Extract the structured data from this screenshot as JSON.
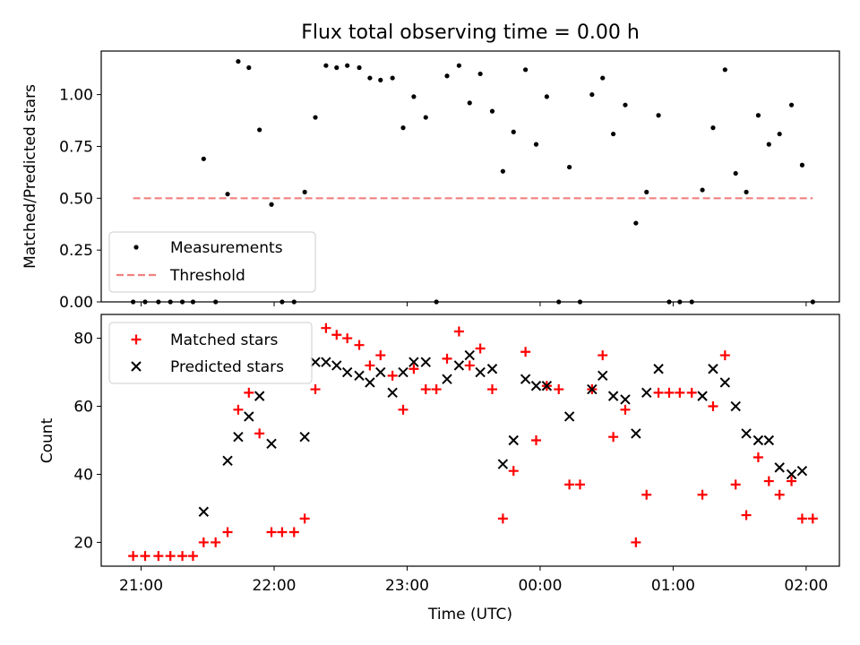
{
  "chart_data": [
    {
      "type": "scatter",
      "title": "Flux total observing time = 0.00 h",
      "xlabel": "",
      "ylabel": "Matched/Predicted stars",
      "xlim": [
        -0.3,
        5.25
      ],
      "ylim": [
        0.0,
        1.21
      ],
      "yticks": [
        0.0,
        0.25,
        0.5,
        0.75,
        1.0
      ],
      "ytick_labels": [
        "0.00",
        "0.25",
        "0.50",
        "0.75",
        "1.00"
      ],
      "xticks": [
        0,
        1,
        2,
        3,
        4,
        5
      ],
      "show_x_tick_labels": false,
      "grid": false,
      "legend": {
        "position": "lower-left",
        "entries": [
          "Measurements",
          "Threshold"
        ]
      },
      "series": [
        {
          "name": "Measurements",
          "marker": "dot",
          "color": "#000000",
          "x": [
            -0.06,
            0.03,
            0.13,
            0.22,
            0.31,
            0.39,
            0.47,
            0.56,
            0.65,
            0.73,
            0.81,
            0.89,
            0.98,
            1.06,
            1.15,
            1.23,
            1.31,
            1.39,
            1.47,
            1.55,
            1.64,
            1.72,
            1.8,
            1.89,
            1.97,
            2.05,
            2.14,
            2.22,
            2.3,
            2.39,
            2.47,
            2.55,
            2.64,
            2.72,
            2.8,
            2.89,
            2.97,
            3.05,
            3.14,
            3.22,
            3.3,
            3.39,
            3.47,
            3.55,
            3.64,
            3.72,
            3.8,
            3.89,
            3.97,
            4.05,
            4.14,
            4.22,
            4.3,
            4.39,
            4.47,
            4.55,
            4.64,
            4.72,
            4.8,
            4.89,
            4.97,
            5.05
          ],
          "y": [
            0.0,
            0.0,
            0.0,
            0.0,
            0.0,
            0.0,
            0.69,
            0.0,
            0.52,
            1.16,
            1.13,
            0.83,
            0.47,
            0.0,
            0.0,
            0.53,
            0.89,
            1.14,
            1.13,
            1.14,
            1.13,
            1.08,
            1.07,
            1.08,
            0.84,
            0.99,
            0.89,
            0.0,
            1.09,
            1.14,
            0.96,
            1.1,
            0.92,
            0.63,
            0.82,
            1.12,
            0.76,
            0.99,
            0.0,
            0.65,
            0.0,
            1.0,
            1.08,
            0.81,
            0.95,
            0.38,
            0.53,
            0.9,
            0.0,
            0.0,
            0.0,
            0.54,
            0.84,
            1.12,
            0.62,
            0.53,
            0.9,
            0.76,
            0.81,
            0.95,
            0.66,
            0.0
          ]
        },
        {
          "name": "Threshold",
          "style": "dashed",
          "color": "#f08080",
          "x": [
            -0.06,
            5.05
          ],
          "y": [
            0.5,
            0.5
          ]
        }
      ]
    },
    {
      "type": "scatter",
      "title": "",
      "xlabel": "Time (UTC)",
      "ylabel": "Count",
      "xlim": [
        -0.3,
        5.25
      ],
      "ylim": [
        13,
        87
      ],
      "yticks": [
        20,
        40,
        60,
        80
      ],
      "ytick_labels": [
        "20",
        "40",
        "60",
        "80"
      ],
      "xticks": [
        0,
        1,
        2,
        3,
        4,
        5
      ],
      "xtick_labels": [
        "21:00",
        "22:00",
        "23:00",
        "00:00",
        "01:00",
        "02:00"
      ],
      "grid": false,
      "legend": {
        "position": "upper-left",
        "entries": [
          "Matched stars",
          "Predicted stars"
        ]
      },
      "series": [
        {
          "name": "Matched stars",
          "marker": "plus",
          "color": "#ff0000",
          "x": [
            -0.06,
            0.03,
            0.13,
            0.22,
            0.31,
            0.39,
            0.47,
            0.56,
            0.65,
            0.73,
            0.81,
            0.89,
            0.98,
            1.06,
            1.15,
            1.23,
            1.31,
            1.39,
            1.47,
            1.55,
            1.64,
            1.72,
            1.8,
            1.89,
            1.97,
            2.05,
            2.14,
            2.22,
            2.3,
            2.39,
            2.47,
            2.55,
            2.64,
            2.72,
            2.8,
            2.89,
            2.97,
            3.05,
            3.14,
            3.22,
            3.3,
            3.39,
            3.47,
            3.55,
            3.64,
            3.72,
            3.8,
            3.89,
            3.97,
            4.05,
            4.14,
            4.22,
            4.3,
            4.39,
            4.47,
            4.55,
            4.64,
            4.72,
            4.8,
            4.89,
            4.97,
            5.05
          ],
          "y": [
            16,
            16,
            16,
            16,
            16,
            16,
            20,
            20,
            23,
            59,
            64,
            52,
            23,
            23,
            23,
            27,
            65,
            83,
            81,
            80,
            78,
            72,
            75,
            69,
            59,
            71,
            65,
            65,
            74,
            82,
            72,
            77,
            65,
            27,
            41,
            76,
            50,
            66,
            65,
            37,
            37,
            65,
            75,
            51,
            59,
            20,
            34,
            64,
            64,
            64,
            64,
            34,
            60,
            75,
            37,
            28,
            45,
            38,
            34,
            38,
            27,
            27
          ]
        },
        {
          "name": "Predicted stars",
          "marker": "x",
          "color": "#000000",
          "x": [
            0.47,
            0.65,
            0.73,
            0.81,
            0.89,
            0.98,
            1.23,
            1.31,
            1.39,
            1.47,
            1.55,
            1.64,
            1.72,
            1.8,
            1.89,
            1.97,
            2.05,
            2.14,
            2.3,
            2.39,
            2.47,
            2.55,
            2.64,
            2.72,
            2.8,
            2.89,
            2.97,
            3.05,
            3.22,
            3.39,
            3.47,
            3.55,
            3.64,
            3.72,
            3.8,
            3.89,
            4.22,
            4.3,
            4.39,
            4.47,
            4.55,
            4.64,
            4.72,
            4.8,
            4.89,
            4.97
          ],
          "y": [
            29,
            44,
            51,
            57,
            63,
            49,
            51,
            73,
            73,
            72,
            70,
            69,
            67,
            70,
            64,
            70,
            73,
            73,
            68,
            72,
            75,
            70,
            71,
            43,
            50,
            68,
            66,
            66,
            57,
            65,
            69,
            63,
            62,
            52,
            64,
            71,
            63,
            71,
            67,
            60,
            52,
            50,
            50,
            42,
            40,
            41
          ]
        }
      ]
    }
  ]
}
